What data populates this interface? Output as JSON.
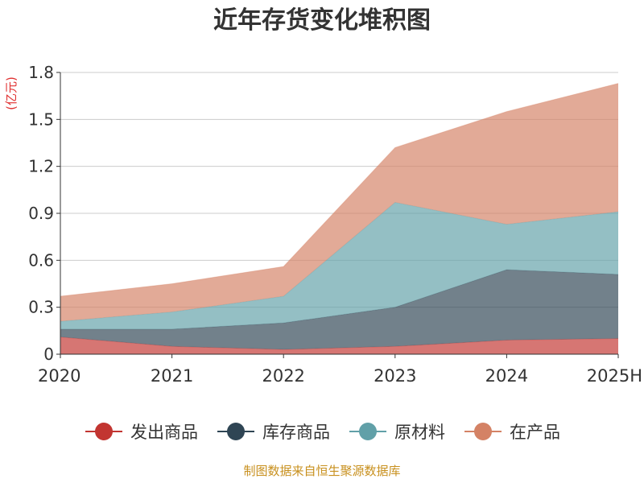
{
  "title": "近年存货变化堆积图",
  "source": "制图数据来自恒生聚源数据库",
  "colors": {
    "发出商品": "#c23531",
    "库存商品": "#2f4554",
    "原材料": "#61a0a8",
    "在产品": "#d48265"
  },
  "chart_data": {
    "type": "area",
    "stacked": true,
    "title": "近年存货变化堆积图",
    "ylabel": "(亿元)",
    "xlabel": "",
    "x": [
      "2020",
      "2021",
      "2022",
      "2023",
      "2024",
      "2025H"
    ],
    "ylim": [
      0,
      1.8
    ],
    "yticks": [
      "0",
      "0.3",
      "0.6",
      "0.9",
      "1.2",
      "1.5",
      "1.8"
    ],
    "grid": true,
    "legend_position": "bottom",
    "series": [
      {
        "name": "发出商品",
        "values": [
          0.11,
          0.05,
          0.03,
          0.05,
          0.09,
          0.1
        ]
      },
      {
        "name": "库存商品",
        "values": [
          0.05,
          0.11,
          0.17,
          0.25,
          0.45,
          0.41
        ]
      },
      {
        "name": "原材料",
        "values": [
          0.05,
          0.11,
          0.17,
          0.67,
          0.29,
          0.4
        ]
      },
      {
        "name": "在产品",
        "values": [
          0.16,
          0.18,
          0.19,
          0.35,
          0.72,
          0.82
        ]
      }
    ]
  }
}
